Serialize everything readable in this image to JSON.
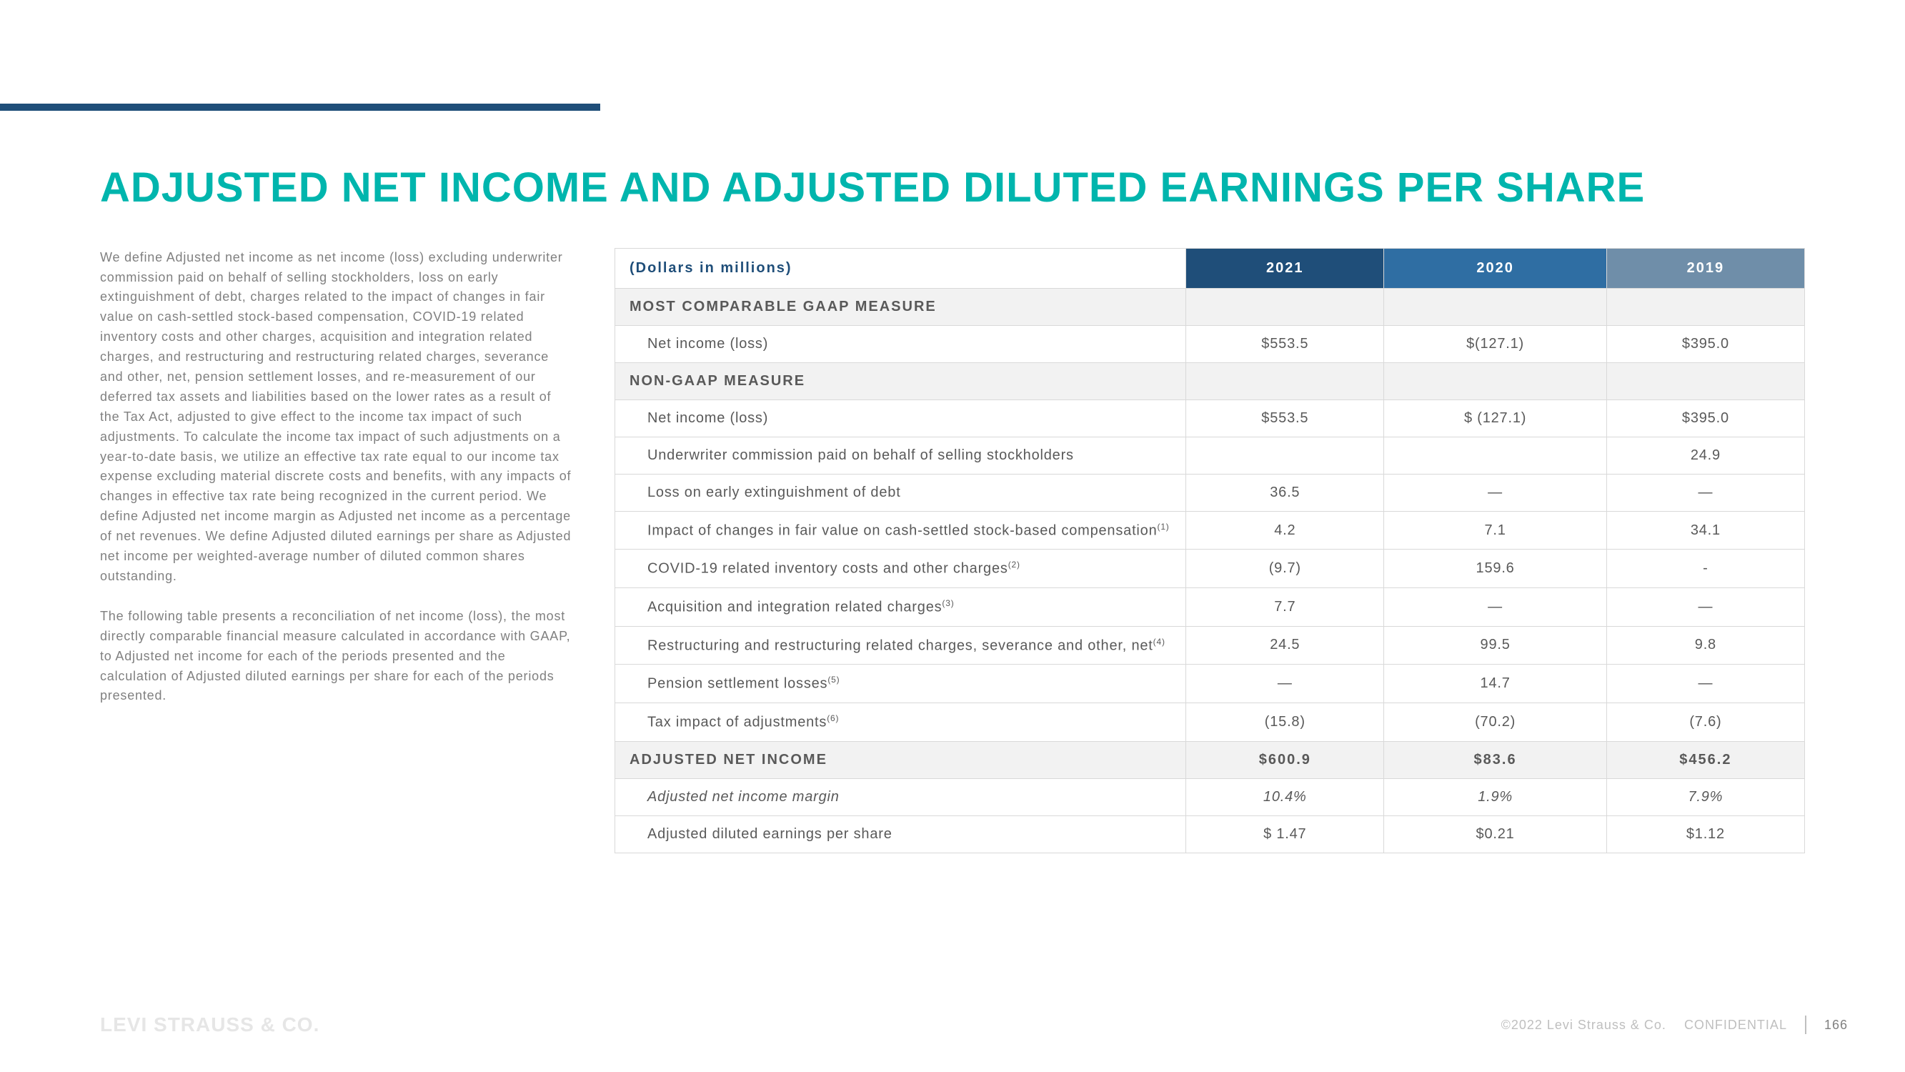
{
  "title": "ADJUSTED NET INCOME AND ADJUSTED DILUTED EARNINGS PER SHARE",
  "paragraphs": {
    "p1": "We define Adjusted net income as net income (loss) excluding underwriter commission paid on behalf of selling stockholders, loss on early extinguishment of debt, charges related to the impact of changes in fair value on cash-settled stock-based compensation, COVID-19 related inventory costs and other charges, acquisition and integration related charges, and restructuring and restructuring related charges, severance and other, net, pension settlement losses, and re-measurement of our deferred tax assets and liabilities based on the lower rates as a result of the Tax Act, adjusted to give effect to the income tax impact of such adjustments. To calculate the income tax impact of such adjustments on a year-to-date basis, we utilize an effective tax rate equal to our income tax expense excluding material discrete costs and benefits, with any impacts of changes in effective tax rate being recognized in the current period. We define Adjusted net income margin as Adjusted net income as a percentage of net revenues. We define Adjusted diluted earnings per share as Adjusted net income per weighted-average number of diluted common shares outstanding.",
    "p2": "The following table presents a reconciliation of net income (loss), the most directly comparable financial measure calculated in accordance with GAAP, to Adjusted net income for each of the periods presented and the calculation of Adjusted diluted earnings per share for each of the periods presented."
  },
  "table": {
    "header_label": "(Dollars in millions)",
    "cols": {
      "c1": "2021",
      "c2": "2020",
      "c3": "2019"
    },
    "section1": "MOST COMPARABLE GAAP MEASURE",
    "r1": {
      "label": "Net income (loss)",
      "v1": "$553.5",
      "v2": "$(127.1)",
      "v3": "$395.0"
    },
    "section2": "NON-GAAP MEASURE",
    "r2": {
      "label": "Net income (loss)",
      "v1": "$553.5",
      "v2": "$ (127.1)",
      "v3": "$395.0"
    },
    "r3": {
      "label": "Underwriter commission paid on behalf of selling stockholders",
      "v1": "",
      "v2": "",
      "v3": "24.9"
    },
    "r4": {
      "label": "Loss on early extinguishment of debt",
      "v1": "36.5",
      "v2": "—",
      "v3": "—"
    },
    "r5": {
      "label": "Impact of changes in fair value on cash-settled stock-based compensation",
      "sup": "(1)",
      "v1": "4.2",
      "v2": "7.1",
      "v3": "34.1"
    },
    "r6": {
      "label": "COVID-19 related inventory costs and other charges",
      "sup": "(2)",
      "v1": "(9.7)",
      "v2": "159.6",
      "v3": "-"
    },
    "r7": {
      "label": "Acquisition and integration related charges",
      "sup": "(3)",
      "v1": "7.7",
      "v2": "—",
      "v3": "—"
    },
    "r8": {
      "label": "Restructuring and restructuring related charges, severance and other, net",
      "sup": "(4)",
      "v1": "24.5",
      "v2": "99.5",
      "v3": "9.8"
    },
    "r9": {
      "label": "Pension settlement losses",
      "sup": "(5)",
      "v1": "—",
      "v2": "14.7",
      "v3": "—"
    },
    "r10": {
      "label": "Tax impact of adjustments",
      "sup": "(6)",
      "v1": "(15.8)",
      "v2": "(70.2)",
      "v3": "(7.6)"
    },
    "r11": {
      "label": "ADJUSTED NET INCOME",
      "v1": "$600.9",
      "v2": "$83.6",
      "v3": "$456.2"
    },
    "r12": {
      "label": "Adjusted net income margin",
      "v1": "10.4%",
      "v2": "1.9%",
      "v3": "7.9%"
    },
    "r13": {
      "label": "Adjusted diluted earnings per share",
      "v1": "$ 1.47",
      "v2": "$0.21",
      "v3": "$1.12"
    }
  },
  "footer": {
    "logo": "LEVI STRAUSS & CO.",
    "copyright": "©2022 Levi Strauss & Co.",
    "confidential": "CONFIDENTIAL",
    "page": "166"
  },
  "colors": {
    "title": "#00b5ad",
    "bar": "#1f4e79",
    "header_2021": "#1f4e79",
    "header_2020": "#2f6ea3",
    "header_2019": "#6f8ea9",
    "section_bg": "#f2f2f2",
    "border": "#d9d9d9",
    "body_text": "#808080"
  }
}
